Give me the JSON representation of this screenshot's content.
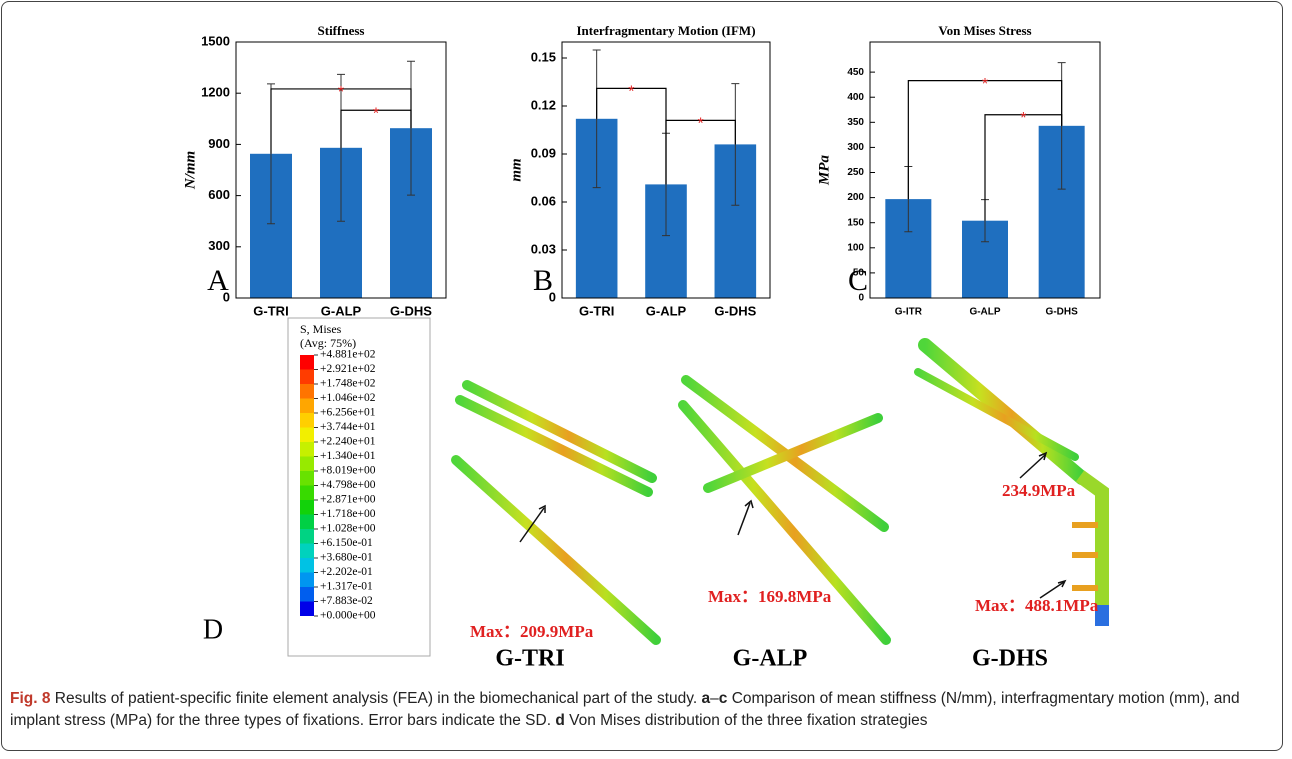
{
  "chart_data": [
    {
      "type": "bar",
      "title": "Stiffness",
      "y_label": "N/mm",
      "panel": "A",
      "categories": [
        "G-TRI",
        "G-ALP",
        "G-DHS"
      ],
      "values": [
        845,
        880,
        995
      ],
      "errors": [
        410,
        430,
        392
      ],
      "color": "#1f6fbf",
      "ylim": [
        0,
        1500
      ],
      "yticks": [
        0,
        300,
        600,
        900,
        1200,
        1500
      ],
      "annotations": [
        {
          "text": "*",
          "from": 0,
          "to": 2,
          "y": 1225
        },
        {
          "text": "*",
          "from": 1,
          "to": 2,
          "y": 1100
        }
      ]
    },
    {
      "type": "bar",
      "title": "Interfragmentary Motion (IFM)",
      "y_label": "mm",
      "panel": "B",
      "categories": [
        "G-TRI",
        "G-ALP",
        "G-DHS"
      ],
      "values": [
        0.112,
        0.071,
        0.096
      ],
      "errors": [
        0.043,
        0.032,
        0.038
      ],
      "color": "#1f6fbf",
      "ylim": [
        0,
        0.16
      ],
      "yticks": [
        0,
        0.03,
        0.06,
        0.09,
        0.12,
        0.15
      ],
      "annotations": [
        {
          "text": "*",
          "from": 0,
          "to": 1,
          "y": 0.131
        },
        {
          "text": "*",
          "from": 1,
          "to": 2,
          "y": 0.111
        }
      ]
    },
    {
      "type": "bar",
      "title": "Von Mises Stress",
      "y_label": "MPa",
      "panel": "C",
      "categories": [
        "G-ITR",
        "G-ALP",
        "G-DHS"
      ],
      "values": [
        197,
        154,
        343
      ],
      "errors": [
        65,
        42,
        126
      ],
      "color": "#1f6fbf",
      "ylim": [
        0,
        510
      ],
      "yticks": [
        0,
        50,
        100,
        150,
        200,
        250,
        300,
        350,
        400,
        450
      ],
      "annotations": [
        {
          "text": "*",
          "from": 0,
          "to": 2,
          "y": 433
        },
        {
          "text": "*",
          "from": 1,
          "to": 2,
          "y": 365
        }
      ]
    }
  ],
  "figure": {
    "panel": "D",
    "legend": {
      "title": "S, Mises",
      "subtitle": "(Avg: 75%)",
      "labels": [
        "+4.881e+02",
        "+2.921e+02",
        "+1.748e+02",
        "+1.046e+02",
        "+6.256e+01",
        "+3.744e+01",
        "+2.240e+01",
        "+1.340e+01",
        "+8.019e+00",
        "+4.798e+00",
        "+2.871e+00",
        "+1.718e+00",
        "+1.028e+00",
        "+6.150e-01",
        "+3.680e-01",
        "+2.202e-01",
        "+1.317e-01",
        "+7.883e-02",
        "+0.000e+00"
      ],
      "colors": [
        "#ff0000",
        "#ff3c00",
        "#ff7400",
        "#ffa600",
        "#ffcf00",
        "#f2ef00",
        "#c6f000",
        "#97ea00",
        "#68e200",
        "#38da00",
        "#12d20a",
        "#00d045",
        "#00d383",
        "#00d2bd",
        "#00c2e4",
        "#0096f0",
        "#005eee",
        "#0000e8"
      ]
    },
    "max_labels": [
      "Max：209.9MPa",
      "Max：169.8MPa",
      "234.9MPa",
      "Max：488.1MPa"
    ],
    "groups": [
      "G-TRI",
      "G-ALP",
      "G-DHS"
    ],
    "caption": {
      "label": "Fig. 8",
      "parts": [
        " Results of patient-specific finite element analysis (FEA) in the biomechanical part of the study. ",
        "a",
        "–",
        "c",
        " Comparison of mean stiffness (N/mm), interfragmentary motion (mm), and implant stress (MPa) for the three types of fixations. Error bars indicate the SD. ",
        "d",
        " Von Mises distribution of the three fixation strategies"
      ]
    }
  }
}
